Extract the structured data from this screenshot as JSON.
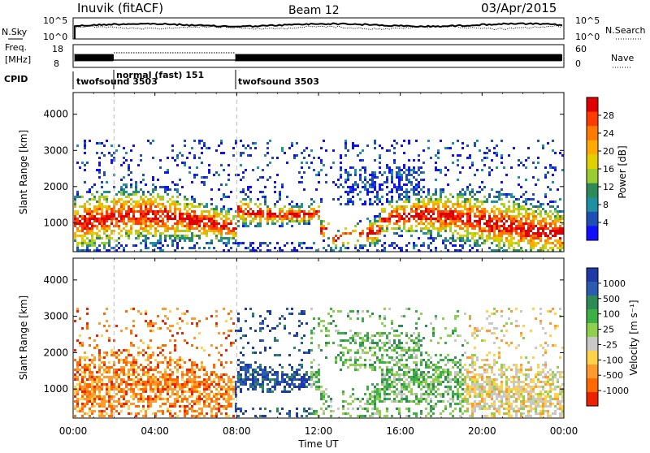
{
  "header": {
    "title": "Inuvik (fitACF)",
    "beam": "Beam 12",
    "date": "03/Apr/2015"
  },
  "nsky_panel": {
    "left_label": "N.Sky",
    "right_label": "N.Search",
    "left_ticks": [
      "10^5",
      "10^0"
    ],
    "right_ticks": [
      "10^5",
      "10^0"
    ]
  },
  "freq_panel": {
    "left_label_line1": "Freq.",
    "left_label_line2": "[MHz]",
    "left_ticks": [
      "18",
      "8"
    ],
    "right_label": "Nave",
    "right_ticks": [
      "60",
      "0"
    ]
  },
  "cpid_panel": {
    "label": "CPID",
    "segments": [
      {
        "label": "twofsound 3503",
        "start_hour": 0,
        "end_hour": 2
      },
      {
        "label": "normal (fast) 151",
        "start_hour": 2,
        "end_hour": 8
      },
      {
        "label": "twofsound 3503",
        "start_hour": 8,
        "end_hour": 24
      }
    ]
  },
  "chart_data": [
    {
      "type": "heatmap",
      "name_hint": "power",
      "ylabel": "Slant Range [km]",
      "yticks": [
        1000,
        2000,
        3000,
        4000
      ],
      "ylim": [
        200,
        4600
      ],
      "xlim_hours": [
        0,
        24
      ],
      "colorbar": {
        "label": "Power [dB]",
        "ticks": [
          "28",
          "24",
          "20",
          "16",
          "12",
          "8",
          "4"
        ],
        "colors": [
          "#e00000",
          "#ff3b00",
          "#ff7a00",
          "#ffaa00",
          "#e0d000",
          "#9acd32",
          "#2e8b57",
          "#1e90a0",
          "#1f4fb4",
          "#1010ff"
        ]
      }
    },
    {
      "type": "heatmap",
      "name_hint": "velocity",
      "ylabel": "Slant Range [km]",
      "yticks": [
        1000,
        2000,
        3000,
        4000
      ],
      "ylim": [
        200,
        4600
      ],
      "xlim_hours": [
        0,
        24
      ],
      "colorbar": {
        "label": "Velocity [m s⁻¹]",
        "ticks": [
          "1000",
          "500",
          "100",
          "25",
          "-25",
          "-100",
          "-500",
          "-1000"
        ],
        "colors": [
          "#1f3aa6",
          "#2a5db0",
          "#2e8b57",
          "#3cb043",
          "#8fd14f",
          "#c8c8c8",
          "#ffd24a",
          "#ff9a2e",
          "#ff6a00",
          "#ee2200"
        ]
      }
    }
  ],
  "xaxis": {
    "label": "Time UT",
    "ticks": [
      "00:00",
      "04:00",
      "08:00",
      "12:00",
      "16:00",
      "20:00",
      "00:00"
    ]
  }
}
